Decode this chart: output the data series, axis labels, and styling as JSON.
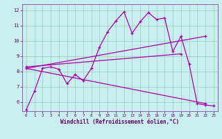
{
  "bg_color": "#c8eef0",
  "line_color": "#aa00aa",
  "grid_color": "#99ccbb",
  "xlabel": "Windchill (Refroidissement éolien,°C)",
  "ylim": [
    5.4,
    12.4
  ],
  "xlim": [
    -0.5,
    23.5
  ],
  "yticks": [
    6,
    7,
    8,
    9,
    10,
    11,
    12
  ],
  "xticks": [
    0,
    1,
    2,
    3,
    4,
    5,
    6,
    7,
    8,
    9,
    10,
    11,
    12,
    13,
    14,
    15,
    16,
    17,
    18,
    19,
    20,
    21,
    22,
    23
  ],
  "series1_x": [
    0,
    1,
    2,
    3,
    4,
    5,
    6,
    7,
    8,
    9,
    10,
    11,
    12,
    13,
    14,
    15,
    16,
    17,
    18,
    19,
    20,
    21,
    22,
    23
  ],
  "series1_y": [
    5.5,
    6.7,
    8.2,
    8.3,
    8.15,
    7.2,
    7.8,
    7.4,
    8.2,
    9.6,
    10.6,
    11.3,
    11.9,
    10.5,
    11.25,
    11.85,
    11.4,
    11.5,
    9.3,
    10.3,
    8.5,
    5.9,
    5.8,
    5.75
  ],
  "series2_x": [
    0,
    22
  ],
  "series2_y": [
    8.2,
    10.3
  ],
  "series3_x": [
    0,
    19
  ],
  "series3_y": [
    8.3,
    9.15
  ],
  "series4_x": [
    0,
    22
  ],
  "series4_y": [
    8.2,
    5.9
  ],
  "axis_label_color": "#660066",
  "spine_color": "#8844aa"
}
